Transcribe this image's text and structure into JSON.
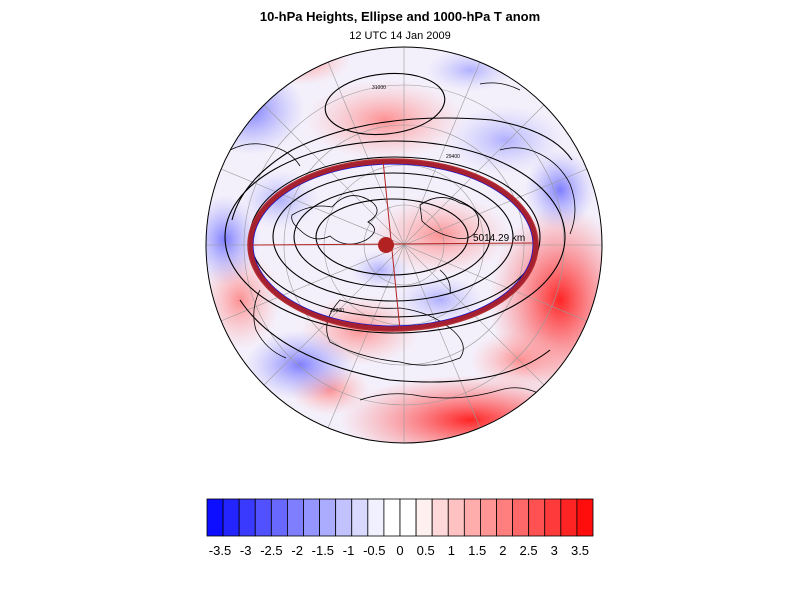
{
  "title": "10-hPa Heights, Ellipse and 1000-hPa T anom",
  "subtitle": "12 UTC 14 Jan 2009",
  "map": {
    "projection": "polar stereographic (north pole)",
    "ellipse_label": "5014.29 km",
    "contour_labels": [
      "31000",
      "29400",
      "29800"
    ],
    "colors": {
      "ellipse_outer": "#b22222",
      "ellipse_inner": "#1414d4",
      "center_marker": "#b22222",
      "contours": "#000000",
      "coastlines": "#000000"
    }
  },
  "colorbar": {
    "tick_labels": [
      "-3.5",
      "-3",
      "-2.5",
      "-2",
      "-1.5",
      "-1",
      "-0.5",
      "0",
      "0.5",
      "1",
      "1.5",
      "2",
      "2.5",
      "3",
      "3.5"
    ],
    "colors": [
      "#0d0dff",
      "#2424ff",
      "#3a3aff",
      "#5151ff",
      "#6868ff",
      "#7e7eff",
      "#9595ff",
      "#acacff",
      "#c2c2ff",
      "#d9d9ff",
      "#f0f0ff",
      "#ffffff",
      "#ffffff",
      "#fff0f0",
      "#ffd9d9",
      "#ffc2c2",
      "#ffacac",
      "#ff9595",
      "#ff7e7e",
      "#ff6868",
      "#ff5151",
      "#ff3a3a",
      "#ff2424",
      "#ff0d0d"
    ]
  }
}
